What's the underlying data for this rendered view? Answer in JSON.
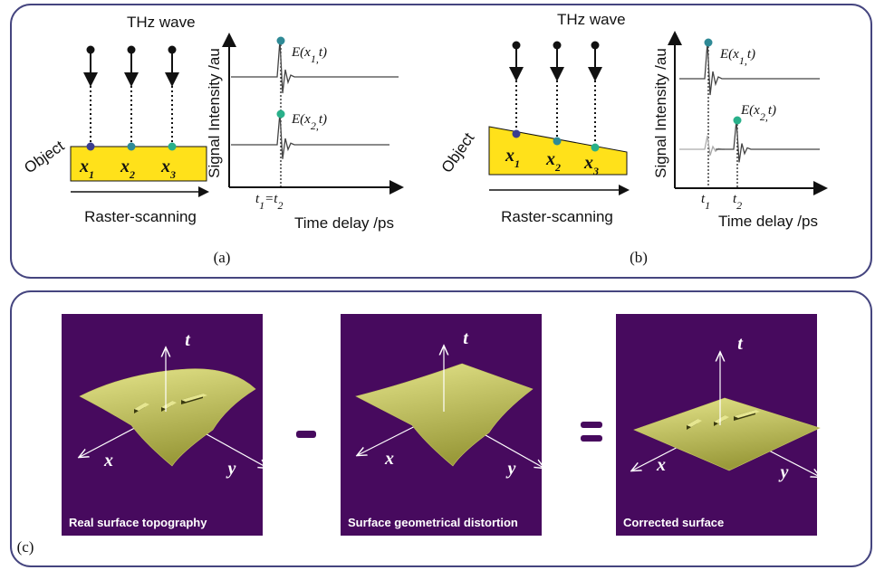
{
  "panel_a": {
    "wave_label": "THz wave",
    "object_label": "Object",
    "positions": [
      {
        "base": "x",
        "sub": "1"
      },
      {
        "base": "x",
        "sub": "2"
      },
      {
        "base": "x",
        "sub": "3"
      }
    ],
    "scan_label": "Raster-scanning",
    "y_axis_label": "Signal Intensity /au",
    "x_axis_label": "Time delay /ps",
    "signals": [
      {
        "base": "E(x",
        "sub": "1,",
        "tail": "t)"
      },
      {
        "base": "E(x",
        "sub": "2,",
        "tail": "t)"
      }
    ],
    "time_label": {
      "base": "t",
      "sub": "1",
      "mid": "=t",
      "sub2": "2"
    },
    "caption": "(a)"
  },
  "panel_b": {
    "wave_label": "THz wave",
    "object_label": "Object",
    "positions": [
      {
        "base": "x",
        "sub": "1"
      },
      {
        "base": "x",
        "sub": "2"
      },
      {
        "base": "x",
        "sub": "3"
      }
    ],
    "scan_label": "Raster-scanning",
    "y_axis_label": "Signal Intensity /au",
    "x_axis_label": "Time delay /ps",
    "signals": [
      {
        "base": "E(x",
        "sub": "1,",
        "tail": "t)"
      },
      {
        "base": "E(x",
        "sub": "2,",
        "tail": "t)"
      }
    ],
    "time_labels": [
      {
        "base": "t",
        "sub": "1"
      },
      {
        "base": "t",
        "sub": "2"
      }
    ],
    "caption": "(b)"
  },
  "panel_c": {
    "panels": [
      {
        "caption": "Real surface topography",
        "axes": [
          "t",
          "x",
          "y"
        ]
      },
      {
        "caption": "Surface geometrical distortion",
        "axes": [
          "t",
          "x",
          "y"
        ]
      },
      {
        "caption": "Corrected surface",
        "axes": [
          "t",
          "x",
          "y"
        ]
      }
    ],
    "caption": "(c)"
  }
}
